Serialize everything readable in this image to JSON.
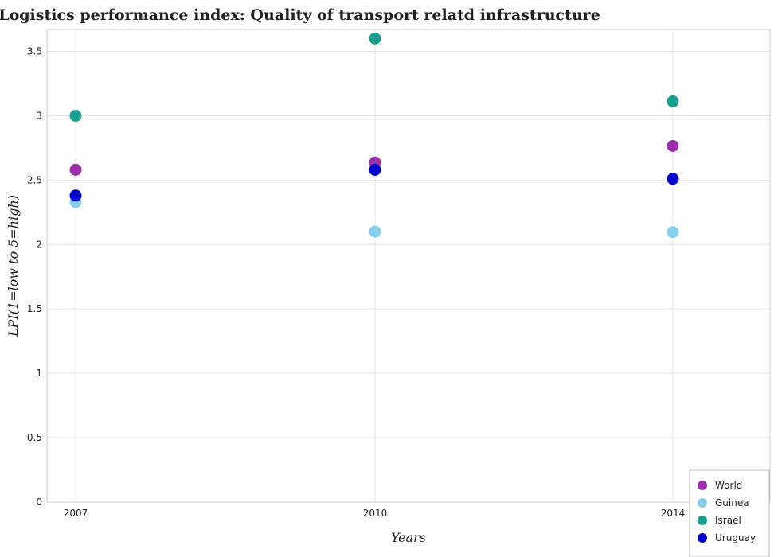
{
  "chart_data": {
    "type": "scatter",
    "title": "Logistics performance index: Quality of transport relatd infrastructure",
    "xlabel": "Years",
    "ylabel": "LPI(1=low to 5=high)",
    "categories": [
      "2007",
      "2010",
      "2014"
    ],
    "ylim": [
      0,
      3.67
    ],
    "yticks": [
      0,
      0.5,
      1,
      1.5,
      2,
      2.5,
      3,
      3.5
    ],
    "ytick_labels": [
      "0",
      "0.5",
      "1",
      "1.5",
      "2",
      "2.5",
      "3",
      "3.5"
    ],
    "grid": true,
    "legend_position": "bottom-right",
    "series": [
      {
        "name": "World",
        "color": "#9b30a8",
        "values": [
          2.58,
          2.637,
          2.765
        ]
      },
      {
        "name": "Guinea",
        "color": "#87ceeb",
        "values": [
          2.33,
          2.1,
          2.097
        ]
      },
      {
        "name": "Israel",
        "color": "#1a9e8f",
        "values": [
          3.0,
          3.6,
          3.111
        ]
      },
      {
        "name": "Uruguay",
        "color": "#0000cd",
        "values": [
          2.38,
          2.58,
          2.51
        ]
      }
    ]
  }
}
